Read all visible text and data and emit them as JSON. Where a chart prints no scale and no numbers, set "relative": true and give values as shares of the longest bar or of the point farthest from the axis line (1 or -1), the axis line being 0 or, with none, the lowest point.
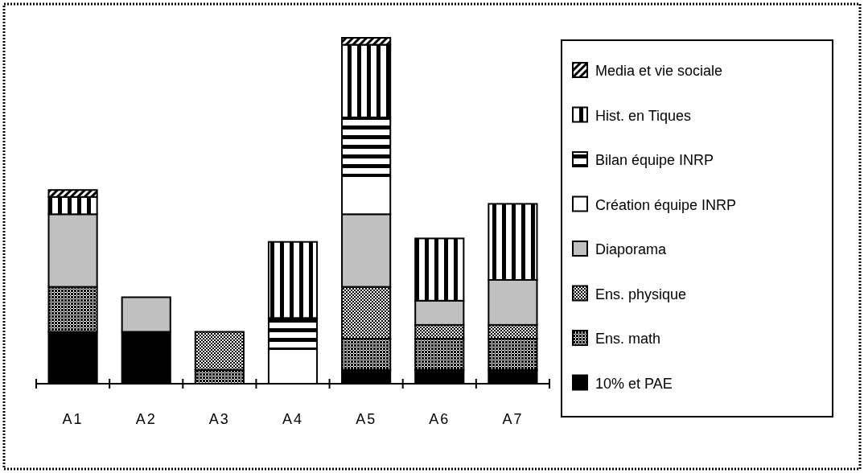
{
  "chart_data": {
    "type": "bar",
    "stacked": true,
    "relative": true,
    "legend": "right",
    "categories": [
      "A1",
      "A2",
      "A3",
      "A4",
      "A5",
      "A6",
      "A7"
    ],
    "series": [
      {
        "name": "10% et PAE",
        "color": "#000000",
        "values": [
          0.15,
          0.15,
          null,
          null,
          0.04,
          0.04,
          0.04
        ]
      },
      {
        "name": "Ens. math",
        "color": "#000000",
        "values": [
          0.13,
          null,
          0.04,
          null,
          0.09,
          0.09,
          0.09
        ]
      },
      {
        "name": "Ens. physique",
        "color": "#000000",
        "values": [
          null,
          null,
          0.11,
          null,
          0.15,
          0.04,
          0.04
        ]
      },
      {
        "name": "Diaporama",
        "color": "#c0c0c0",
        "values": [
          0.21,
          0.1,
          null,
          null,
          0.21,
          0.07,
          0.13
        ]
      },
      {
        "name": "Création équipe INRP",
        "color": "#ffffff",
        "values": [
          null,
          null,
          null,
          0.1,
          0.11,
          null,
          null
        ]
      },
      {
        "name": "Bilan équipe INRP",
        "color": "#000000",
        "values": [
          null,
          null,
          null,
          0.09,
          0.17,
          null,
          null
        ]
      },
      {
        "name": "Hist. en Tiques",
        "color": "#000000",
        "values": [
          0.05,
          null,
          null,
          0.22,
          0.21,
          0.18,
          0.22
        ]
      },
      {
        "name": "Media et vie sociale",
        "color": "#000000",
        "values": [
          0.02,
          null,
          null,
          null,
          0.02,
          null,
          null
        ]
      }
    ]
  }
}
